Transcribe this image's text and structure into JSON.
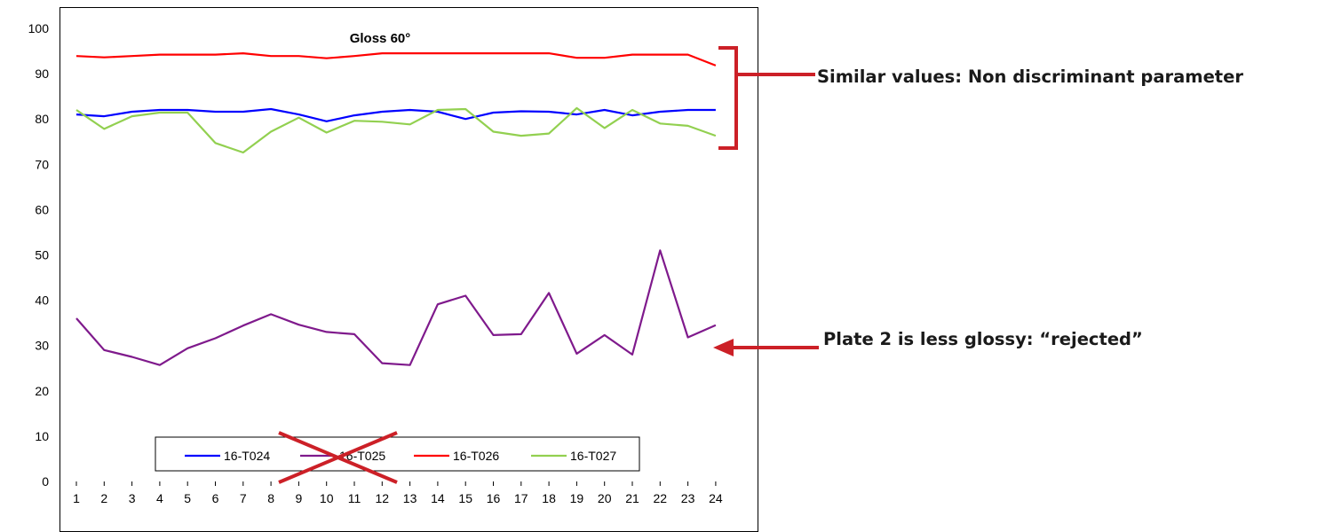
{
  "chart_data": {
    "type": "line",
    "title": "Gloss 60°",
    "xlabel": "",
    "ylabel": "",
    "x": [
      1,
      2,
      3,
      4,
      5,
      6,
      7,
      8,
      9,
      10,
      11,
      12,
      13,
      14,
      15,
      16,
      17,
      18,
      19,
      20,
      21,
      22,
      23,
      24
    ],
    "ylim": [
      0,
      100
    ],
    "yticks": [
      0,
      10,
      20,
      30,
      40,
      50,
      60,
      70,
      80,
      90,
      100
    ],
    "grid": false,
    "legend": "bottom-center",
    "series": [
      {
        "name": "16-T024",
        "color": "#0000ff",
        "values": [
          81,
          80.6,
          81.6,
          82,
          82,
          81.6,
          81.6,
          82.2,
          81,
          79.5,
          80.8,
          81.6,
          82,
          81.6,
          80,
          81.4,
          81.7,
          81.6,
          81,
          82,
          80.8,
          81.6,
          82,
          82
        ]
      },
      {
        "name": "16-T025",
        "color": "#7f1a8c",
        "crossed_out": true,
        "values": [
          36,
          29,
          27.5,
          25.7,
          29.4,
          31.6,
          34.4,
          36.9,
          34.6,
          33,
          32.5,
          26.1,
          25.7,
          39.1,
          41,
          32.3,
          32.5,
          41.6,
          28.2,
          32.3,
          28,
          51,
          31.8,
          34.5
        ]
      },
      {
        "name": "16-T026",
        "color": "#ff0000",
        "values": [
          93.9,
          93.6,
          93.9,
          94.2,
          94.2,
          94.2,
          94.5,
          93.9,
          93.9,
          93.4,
          93.9,
          94.5,
          94.5,
          94.5,
          94.5,
          94.5,
          94.5,
          94.5,
          93.5,
          93.5,
          94.2,
          94.2,
          94.2,
          91.8
        ]
      },
      {
        "name": "16-T027",
        "color": "#92d050",
        "values": [
          82,
          77.8,
          80.6,
          81.4,
          81.4,
          74.7,
          72.6,
          77.2,
          80.3,
          77,
          79.6,
          79.4,
          78.8,
          82,
          82.2,
          77.2,
          76.3,
          76.8,
          82.4,
          78,
          82,
          79,
          78.5,
          76.3
        ]
      }
    ]
  },
  "annotations": {
    "similar": "Similar values: Non discriminant parameter",
    "rejected": "Plate 2 is less glossy: “rejected”"
  },
  "colors": {
    "annotation_red": "#cc2027"
  }
}
